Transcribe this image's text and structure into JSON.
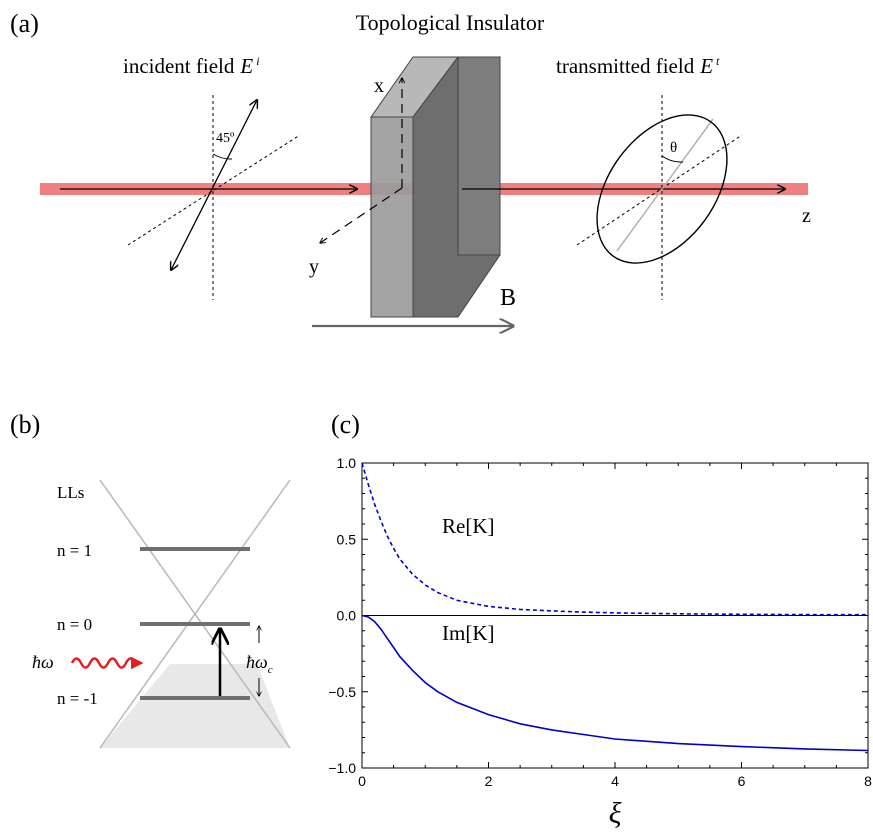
{
  "panel_a": {
    "label": "(a)",
    "title": "Topological Insulator",
    "incident_label": "incident field",
    "incident_symbol": "E",
    "incident_sup": "i",
    "transmitted_label": "transmitted field",
    "transmitted_symbol": "E",
    "transmitted_sup": "t",
    "angle_45": "45º",
    "theta": "θ",
    "axis_x": "x",
    "axis_y": "y",
    "axis_z": "z",
    "field_B": "B"
  },
  "panel_b": {
    "label": "(b)",
    "lls": "LLs",
    "n1": "n = 1",
    "n0": "n = 0",
    "nm1": "n = -1",
    "photon": "ħω",
    "cyclotron": "ħω",
    "cyclotron_sub": "c"
  },
  "panel_c": {
    "label": "(c)",
    "re_label": "Re[K]",
    "im_label": "Im[K]",
    "xlabel": "ξ"
  },
  "colors": {
    "beam": "#f08080",
    "curve": "#0000cc",
    "photon": "#e02020",
    "slab_front": "#9a9a9a",
    "slab_side": "#707070",
    "level": "#707070"
  },
  "chart_data": {
    "type": "line",
    "xlabel": "ξ",
    "ylabel": "",
    "xlim": [
      0,
      8
    ],
    "ylim": [
      -1.0,
      1.0
    ],
    "xticks": [
      0,
      2,
      4,
      6,
      8
    ],
    "yticks": [
      1.0,
      0.5,
      0.0,
      -0.5,
      -1.0
    ],
    "ytick_labels": [
      "1.0",
      "0.5",
      "0.0",
      "−0.5",
      "−1.0"
    ],
    "series": [
      {
        "name": "Re[K]",
        "style": "dashed",
        "x": [
          0,
          0.1,
          0.2,
          0.3,
          0.4,
          0.5,
          0.6,
          0.8,
          1.0,
          1.2,
          1.5,
          2.0,
          2.5,
          3.0,
          3.5,
          4.0,
          5.0,
          6.0,
          7.0,
          8.0
        ],
        "y": [
          1.0,
          0.86,
          0.73,
          0.62,
          0.52,
          0.44,
          0.37,
          0.27,
          0.2,
          0.15,
          0.1,
          0.06,
          0.04,
          0.03,
          0.022,
          0.017,
          0.011,
          0.008,
          0.006,
          0.005
        ]
      },
      {
        "name": "Im[K]",
        "style": "solid",
        "x": [
          0,
          0.1,
          0.2,
          0.3,
          0.4,
          0.5,
          0.6,
          0.8,
          1.0,
          1.2,
          1.5,
          2.0,
          2.5,
          3.0,
          3.5,
          4.0,
          5.0,
          6.0,
          7.0,
          8.0
        ],
        "y": [
          0.0,
          -0.01,
          -0.04,
          -0.09,
          -0.15,
          -0.21,
          -0.27,
          -0.36,
          -0.44,
          -0.5,
          -0.57,
          -0.65,
          -0.71,
          -0.75,
          -0.78,
          -0.81,
          -0.84,
          -0.86,
          -0.875,
          -0.885
        ]
      }
    ]
  }
}
